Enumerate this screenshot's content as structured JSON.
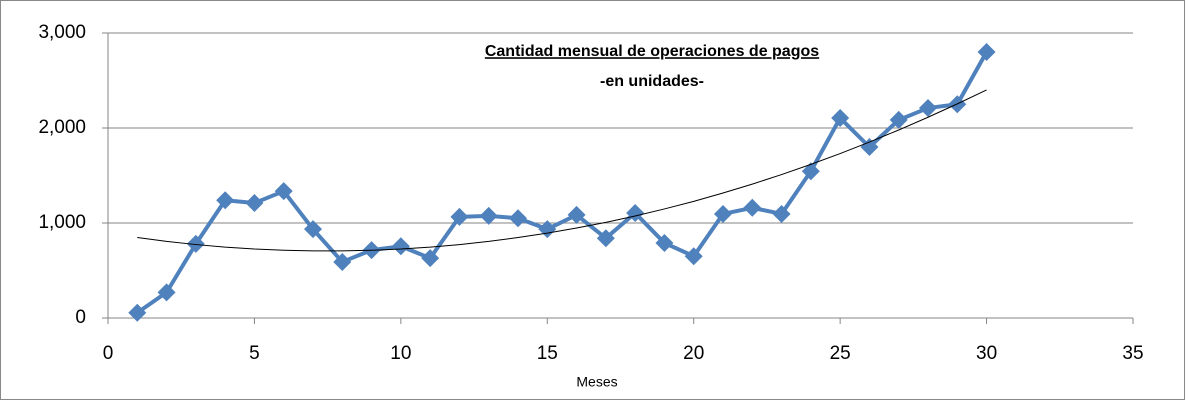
{
  "chart_data": {
    "type": "line",
    "title": "Cantidad mensual de operaciones de pagos",
    "subtitle": "-en unidades-",
    "x_label": "Meses",
    "x": [
      1,
      2,
      3,
      4,
      5,
      6,
      7,
      8,
      9,
      10,
      11,
      12,
      13,
      14,
      15,
      16,
      17,
      18,
      19,
      20,
      21,
      22,
      23,
      24,
      25,
      26,
      27,
      28,
      29,
      30
    ],
    "series": [
      {
        "color": "#4f81bd",
        "markers": true,
        "width": 4,
        "values": [
          55,
          270,
          780,
          1240,
          1210,
          1335,
          935,
          590,
          715,
          755,
          630,
          1065,
          1075,
          1050,
          935,
          1085,
          840,
          1105,
          790,
          650,
          1095,
          1160,
          1095,
          1545,
          2105,
          1800,
          2085,
          2210,
          2250,
          2800
        ]
      },
      {
        "color": "#000000",
        "markers": false,
        "width": 1,
        "values": [
          847,
          806,
          773,
          746,
          726,
          713,
          706,
          706,
          713,
          726,
          746,
          773,
          806,
          847,
          893,
          947,
          1007,
          1074,
          1148,
          1228,
          1316,
          1409,
          1510,
          1617,
          1731,
          1852,
          1979,
          2113,
          2254,
          2401
        ]
      }
    ],
    "xlim": [
      0,
      35
    ],
    "xticks": [
      0,
      5,
      10,
      15,
      20,
      25,
      30,
      35
    ],
    "ylim": [
      0,
      3000
    ],
    "yticks": [
      0,
      {
        "value": 1000,
        "label": "1,000"
      },
      {
        "value": 2000,
        "label": "2,000"
      },
      {
        "value": 3000,
        "label": "3,000"
      }
    ],
    "grid": true
  }
}
